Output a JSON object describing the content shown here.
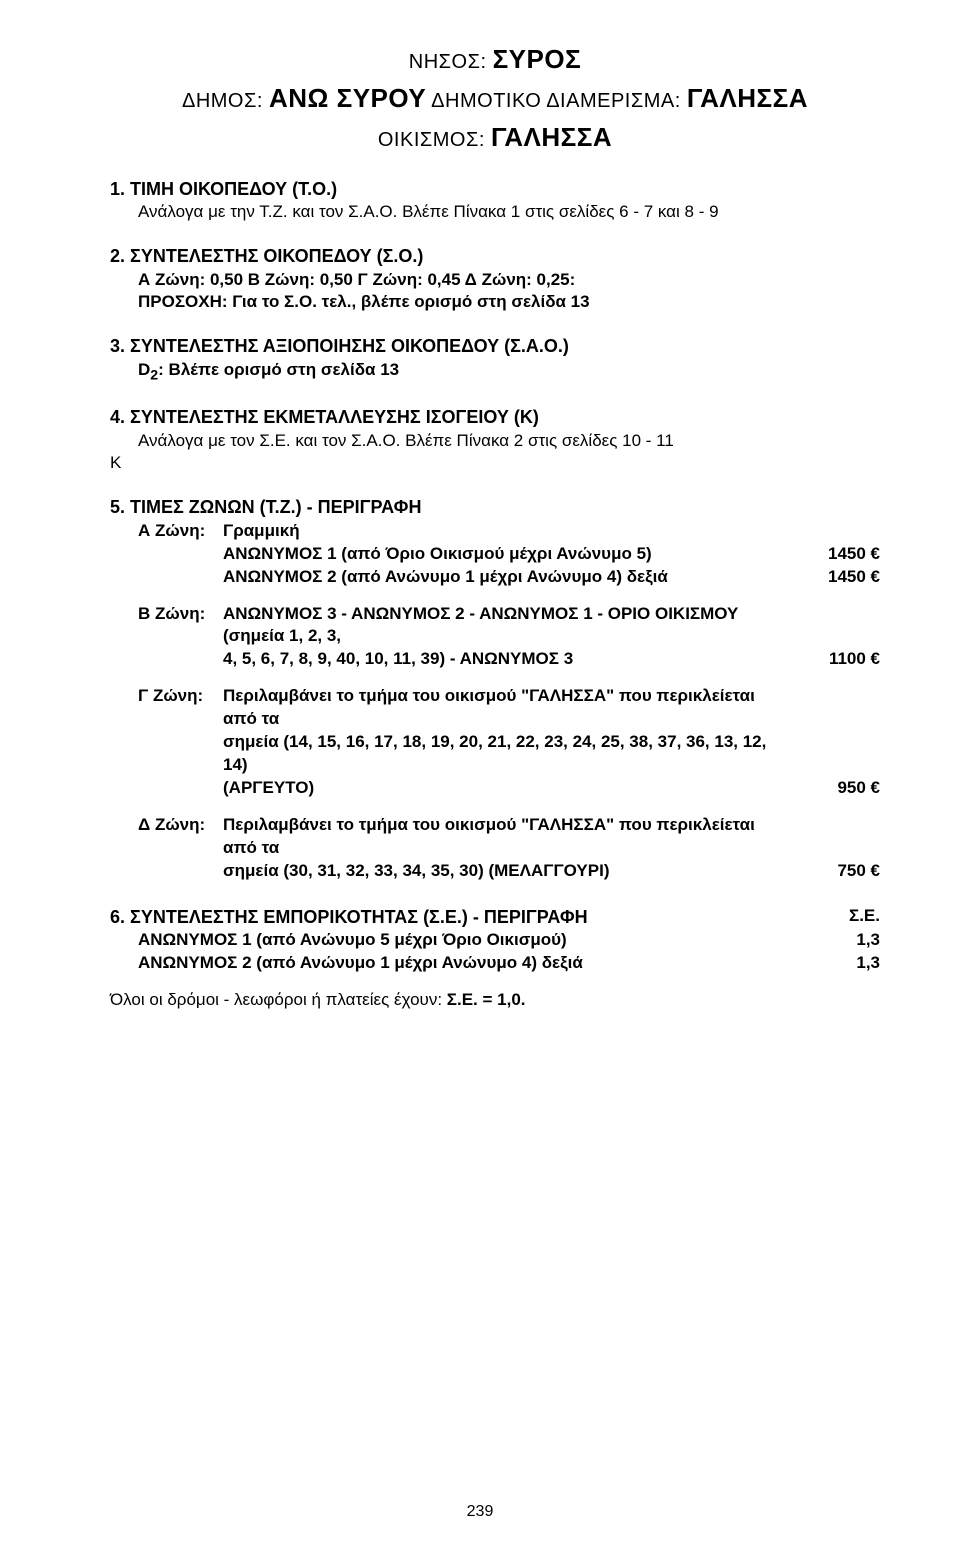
{
  "header": {
    "nisos_label": "ΝΗΣΟΣ:",
    "nisos_value": "ΣΥΡΟΣ",
    "dimos_label": "ΔΗΜΟΣ:",
    "dimos_value": "ΑΝΩ ΣΥΡΟΥ",
    "dimdiam_label": "ΔΗΜΟΤΙΚΟ ΔΙΑΜΕΡΙΣΜΑ:",
    "dimdiam_value": "ΓΑΛΗΣΣΑ",
    "oikismos_label": "ΟΙΚΙΣΜΟΣ:",
    "oikismos_value": "ΓΑΛΗΣΣΑ"
  },
  "sec1": {
    "title": "1. ΤΙΜΗ ΟΙΚΟΠΕΔΟΥ (Τ.Ο.)",
    "line": "Ανάλογα με την Τ.Ζ. και τον Σ.Α.Ο. Βλέπε Πίνακα 1 στις σελίδες  6 - 7 και  8 - 9"
  },
  "sec2": {
    "title": "2. ΣΥΝΤΕΛΕΣΤΗΣ ΟΙΚΟΠΕΔΟΥ (Σ.Ο.)",
    "line1": "Α Ζώνη: 0,50    Β Ζώνη: 0,50    Γ Ζώνη: 0,45    Δ Ζώνη: 0,25:",
    "line2": "ΠΡΟΣΟΧΗ: Για το Σ.Ο. τελ., βλέπε ορισμό στη σελίδα 13"
  },
  "sec3": {
    "title": "3. ΣΥΝΤΕΛΕΣΤΗΣ ΑΞΙΟΠΟΙΗΣΗΣ ΟΙΚΟΠΕΔΟΥ (Σ.Α.Ο.)",
    "line_prefix": "D",
    "line_sub": "2",
    "line_rest": ": Βλέπε ορισμό στη σελίδα 13"
  },
  "sec4": {
    "title": "4. ΣΥΝΤΕΛΕΣΤΗΣ ΕΚΜΕΤΑΛΛΕΥΣΗΣ ΙΣΟΓΕΙΟΥ (Κ)",
    "line": "Ανάλογα με τον Σ.Ε. και τον Σ.Α.Ο. Βλέπε Πίνακα 2 στις σελίδες 10 - 11",
    "marginal": "Κ"
  },
  "sec5": {
    "title": "5. ΤΙΜΕΣ ΖΩΝΩΝ (Τ.Ζ.) - ΠΕΡΙΓΡΑΦΗ",
    "zoneA": {
      "label": "Α  Ζώνη:",
      "first": "Γραμμική",
      "row1_text": "ΑΝΩΝΥΜΟΣ 1 (από  Όριο Οικισμού μέχρι Ανώνυμο 5)",
      "row1_price": "1450 €",
      "row2_text_a": "ΑΝΩΝΥΜΟΣ 2 (από  Ανώνυμο 1 μέχρι Ανώνυμο 4) ",
      "row2_text_b": "δεξιά",
      "row2_price": "1450 €"
    },
    "zoneB": {
      "label": "Β  Ζώνη:",
      "text1": "ΑΝΩΝΥΜΟΣ 3 - ΑΝΩΝΥΜΟΣ 2 - ΑΝΩΝΥΜΟΣ 1 - ΟΡΙΟ ΟΙΚΙΣΜΟΥ (σημεία 1, 2, 3,",
      "text2": "4, 5, 6, 7, 8, 9, 40, 10, 11, 39) - ΑΝΩΝΥΜΟΣ  3",
      "price": "1100 €"
    },
    "zoneG": {
      "label": "Γ  Ζώνη:",
      "text1": "Περιλαμβάνει  το  τμήμα του οικισμού \"ΓΑΛΗΣΣΑ\" που περικλείεται από τα",
      "text2": "σημεία (14, 15, 16, 17, 18, 19, 20, 21, 22, 23, 24, 25, 38, 37, 36, 13, 12, 14)",
      "text3": "(ΑΡΓΕΥΤΟ)",
      "price": "950 €"
    },
    "zoneD": {
      "label": "Δ  Ζώνη:",
      "text1": "Περιλαμβάνει  το  τμήμα του οικισμού \"ΓΑΛΗΣΣΑ\" που περικλείεται από τα",
      "text2": "σημεία (30, 31, 32, 33, 34, 35, 30) (ΜΕΛΑΓΓΟΥΡΙ)",
      "price": "750 €"
    }
  },
  "sec6": {
    "title": "6. ΣΥΝΤΕΛΕΣΤΗΣ ΕΜΠΟΡΙΚΟΤΗΤΑΣ (Σ.Ε.) - ΠΕΡΙΓΡΑΦΗ",
    "se_header": "Σ.Ε.",
    "row1_text": "ΑΝΩΝΥΜΟΣ 1 (από Ανώνυμο 5 μέχρι Όριο Οικισμού)",
    "row1_val": "1,3",
    "row2_a": "ΑΝΩΝΥΜΟΣ 2 (από Ανώνυμο 1 μέχρι Ανώνυμο 4) ",
    "row2_b": "δεξιά",
    "row2_val": "1,3",
    "footer_a": "Όλοι οι δρόμοι - λεωφόροι ή πλατείες έχουν: ",
    "footer_b": "Σ.Ε. = 1,0."
  },
  "pageno": "239"
}
